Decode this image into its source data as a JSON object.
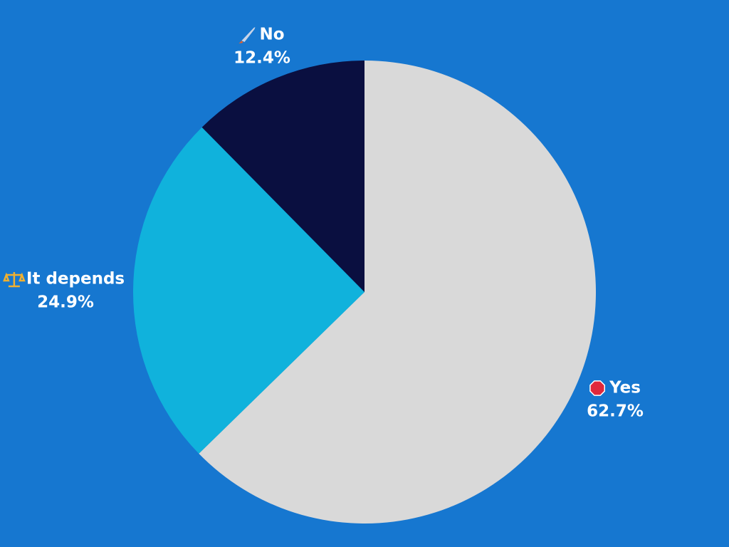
{
  "chart_data": {
    "type": "pie",
    "categories": [
      "Yes",
      "It depends",
      "No"
    ],
    "values": [
      62.7,
      24.9,
      12.4
    ],
    "value_labels": [
      "62.7%",
      "24.9%",
      "12.4%"
    ],
    "colors": [
      "#d9d9d9",
      "#10b2dc",
      "#0a0f40"
    ]
  }
}
